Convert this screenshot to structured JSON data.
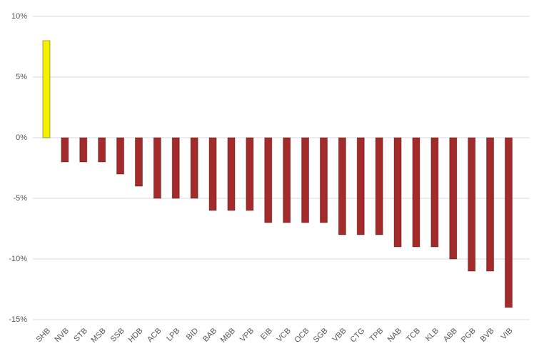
{
  "chart_data": {
    "type": "bar",
    "categories": [
      "SHB",
      "NVB",
      "STB",
      "MSB",
      "SSB",
      "HDB",
      "ACB",
      "LPB",
      "BID",
      "BAB",
      "MBB",
      "VPB",
      "EIB",
      "VCB",
      "OCB",
      "SGB",
      "VBB",
      "CTG",
      "TPB",
      "NAB",
      "TCB",
      "KLB",
      "ABB",
      "PGB",
      "BVB",
      "VIB"
    ],
    "values": [
      8,
      -2,
      -2,
      -2,
      -3,
      -4,
      -5,
      -5,
      -5,
      -6,
      -6,
      -6,
      -7,
      -7,
      -7,
      -7,
      -8,
      -8,
      -8,
      -9,
      -9,
      -9,
      -10,
      -11,
      -11,
      -14
    ],
    "colors": [
      "#f5f000",
      "#a52a2a",
      "#a52a2a",
      "#a52a2a",
      "#a52a2a",
      "#a52a2a",
      "#a52a2a",
      "#a52a2a",
      "#a52a2a",
      "#a52a2a",
      "#a52a2a",
      "#a52a2a",
      "#a52a2a",
      "#a52a2a",
      "#a52a2a",
      "#a52a2a",
      "#a52a2a",
      "#a52a2a",
      "#a52a2a",
      "#a52a2a",
      "#a52a2a",
      "#a52a2a",
      "#a52a2a",
      "#a52a2a",
      "#a52a2a",
      "#a52a2a"
    ],
    "ylim": [
      -15,
      10
    ],
    "yticks": [
      {
        "value": -15,
        "label": "-15%"
      },
      {
        "value": -10,
        "label": "-10%"
      },
      {
        "value": -5,
        "label": "-5%"
      },
      {
        "value": 0,
        "label": "0%"
      },
      {
        "value": 5,
        "label": "5%"
      },
      {
        "value": 10,
        "label": "10%"
      }
    ],
    "grid": true
  }
}
